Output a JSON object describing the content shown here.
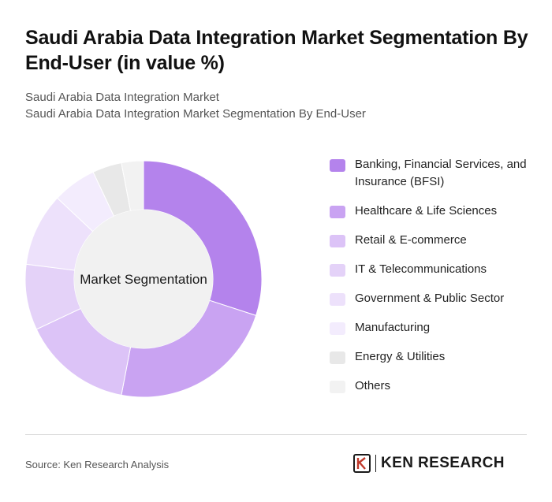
{
  "header": {
    "title": "Saudi Arabia Data Integration Market Segmentation By End-User (in value %)",
    "subtitle_line1": "Saudi Arabia Data Integration Market",
    "subtitle_line2": "Saudi Arabia Data Integration Market Segmentation By End-User"
  },
  "chart_data": {
    "type": "pie",
    "style": "donut",
    "center_label": "Market Segmentation",
    "categories": [
      "Banking, Financial Services, and Insurance (BFSI)",
      "Healthcare & Life Sciences",
      "Retail & E-commerce",
      "IT & Telecommunications",
      "Government & Public Sector",
      "Manufacturing",
      "Energy & Utilities",
      "Others"
    ],
    "values": [
      30,
      23,
      15,
      9,
      10,
      6,
      4,
      3
    ],
    "colors": [
      "#b483ec",
      "#c9a3f2",
      "#dcc3f7",
      "#e4d2f8",
      "#ede1fb",
      "#f3ecfd",
      "#e8e8e8",
      "#f2f2f2"
    ],
    "legend_position": "right"
  },
  "footer": {
    "source": "Source: Ken Research Analysis",
    "brand": "KEN RESEARCH"
  }
}
